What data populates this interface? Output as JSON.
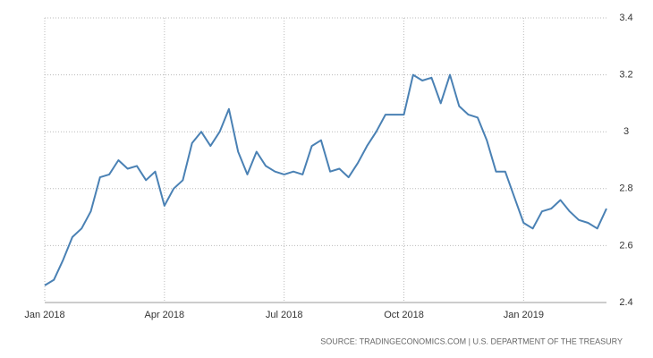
{
  "chart_data": {
    "type": "line",
    "source": "SOURCE: TRADINGECONOMICS.COM | U.S. DEPARTMENT OF THE TREASURY",
    "categories": [
      "Jan 2018",
      null,
      null,
      null,
      null,
      null,
      null,
      null,
      null,
      null,
      null,
      null,
      null,
      "Apr 2018",
      null,
      null,
      null,
      null,
      null,
      null,
      null,
      null,
      null,
      null,
      null,
      null,
      "Jul 2018",
      null,
      null,
      null,
      null,
      null,
      null,
      null,
      null,
      null,
      null,
      null,
      null,
      "Oct 2018",
      null,
      null,
      null,
      null,
      null,
      null,
      null,
      null,
      null,
      null,
      null,
      null,
      "Jan 2019",
      null,
      null,
      null,
      null,
      null,
      null,
      null,
      null,
      null
    ],
    "series": [
      {
        "color": "#4a81b4",
        "values": [
          2.46,
          2.48,
          2.55,
          2.63,
          2.66,
          2.72,
          2.84,
          2.85,
          2.9,
          2.87,
          2.88,
          2.83,
          2.86,
          2.74,
          2.8,
          2.83,
          2.96,
          3.0,
          2.95,
          3.0,
          3.08,
          2.93,
          2.85,
          2.93,
          2.88,
          2.86,
          2.85,
          2.86,
          2.85,
          2.95,
          2.97,
          2.86,
          2.87,
          2.84,
          2.89,
          2.95,
          3.0,
          3.06,
          3.06,
          3.06,
          3.2,
          3.18,
          3.19,
          3.1,
          3.2,
          3.09,
          3.06,
          3.05,
          2.97,
          2.86,
          2.86,
          2.77,
          2.68,
          2.66,
          2.72,
          2.73,
          2.76,
          2.72,
          2.69,
          2.68,
          2.66,
          2.73
        ]
      }
    ],
    "ylim": [
      2.4,
      3.4
    ],
    "yticks": [
      2.4,
      2.6,
      2.8,
      3,
      3.2,
      3.4
    ],
    "grid": true
  }
}
